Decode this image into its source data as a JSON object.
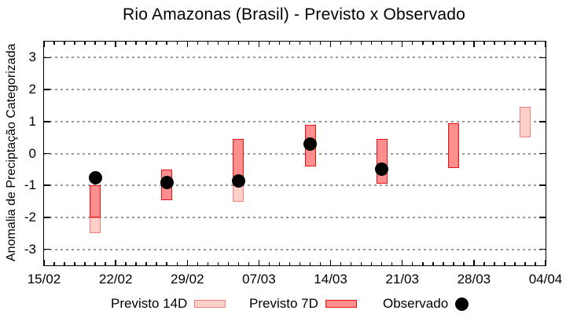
{
  "chart_data": {
    "type": "bar",
    "subtype": "forecast interval bars (candlestick-style) with observed scatter points",
    "title": "Rio Amazonas (Brasil) - Previsto x Observado",
    "xlabel": "",
    "ylabel": "Anomalia de Preciptação Categorizada",
    "ylim": [
      -3.5,
      3.5
    ],
    "y_ticks": [
      3,
      2,
      1,
      0,
      -1,
      -2,
      -3
    ],
    "grid": true,
    "x_total_days": 49,
    "x_major_tick_days": [
      0,
      7,
      14,
      21,
      28,
      35,
      42,
      49
    ],
    "x_major_tick_labels": [
      "15/02",
      "22/02",
      "29/02",
      "07/03",
      "14/03",
      "21/03",
      "28/03",
      "04/04"
    ],
    "x_minor_tick_every_days": 1,
    "legend_position": "below",
    "series": [
      {
        "name": "Previsto 14D",
        "type": "interval-bar",
        "fill": "#ffcfc9",
        "stroke": "#f08080",
        "data": [
          {
            "date": "20/02",
            "day": 5,
            "high": -2.0,
            "low": -2.5
          },
          {
            "date": "05/03",
            "day": 19,
            "high": -1.0,
            "low": -1.5
          },
          {
            "date": "02/04",
            "day": 47,
            "high": 1.45,
            "low": 0.5
          }
        ]
      },
      {
        "name": "Previsto 7D",
        "type": "interval-bar",
        "fill": "#ff8f8f",
        "stroke": "#ee1111",
        "data": [
          {
            "date": "20/02",
            "day": 5,
            "high": -1.0,
            "low": -2.0
          },
          {
            "date": "27/02",
            "day": 12,
            "high": -0.5,
            "low": -1.45
          },
          {
            "date": "05/03",
            "day": 19,
            "high": 0.45,
            "low": -1.0
          },
          {
            "date": "12/03",
            "day": 26,
            "high": 0.9,
            "low": -0.4
          },
          {
            "date": "19/03",
            "day": 33,
            "high": 0.45,
            "low": -0.95
          },
          {
            "date": "26/03",
            "day": 40,
            "high": 0.95,
            "low": -0.45
          }
        ]
      },
      {
        "name": "Observado",
        "type": "scatter",
        "color": "#000000",
        "data": [
          {
            "date": "20/02",
            "day": 5,
            "value": -0.75
          },
          {
            "date": "27/02",
            "day": 12,
            "value": -0.9
          },
          {
            "date": "05/03",
            "day": 19,
            "value": -0.85
          },
          {
            "date": "12/03",
            "day": 26,
            "value": 0.3
          },
          {
            "date": "19/03",
            "day": 33,
            "value": -0.5
          }
        ]
      }
    ]
  },
  "colors": {
    "previsto_14d_fill": "#ffcfc9",
    "previsto_14d_stroke": "#f08080",
    "previsto_7d_fill": "#ff8f8f",
    "previsto_7d_stroke": "#ee1111",
    "observado": "#000000",
    "gridline": "#9a9a9a",
    "axis": "#000000"
  },
  "legend": {
    "items": [
      {
        "label": "Previsto 14D",
        "swatch": "box",
        "fill": "#ffcfc9",
        "stroke": "#f08080"
      },
      {
        "label": "Previsto 7D",
        "swatch": "box",
        "fill": "#ff8f8f",
        "stroke": "#ee1111"
      },
      {
        "label": "Observado",
        "swatch": "dot",
        "fill": "#000000"
      }
    ]
  }
}
